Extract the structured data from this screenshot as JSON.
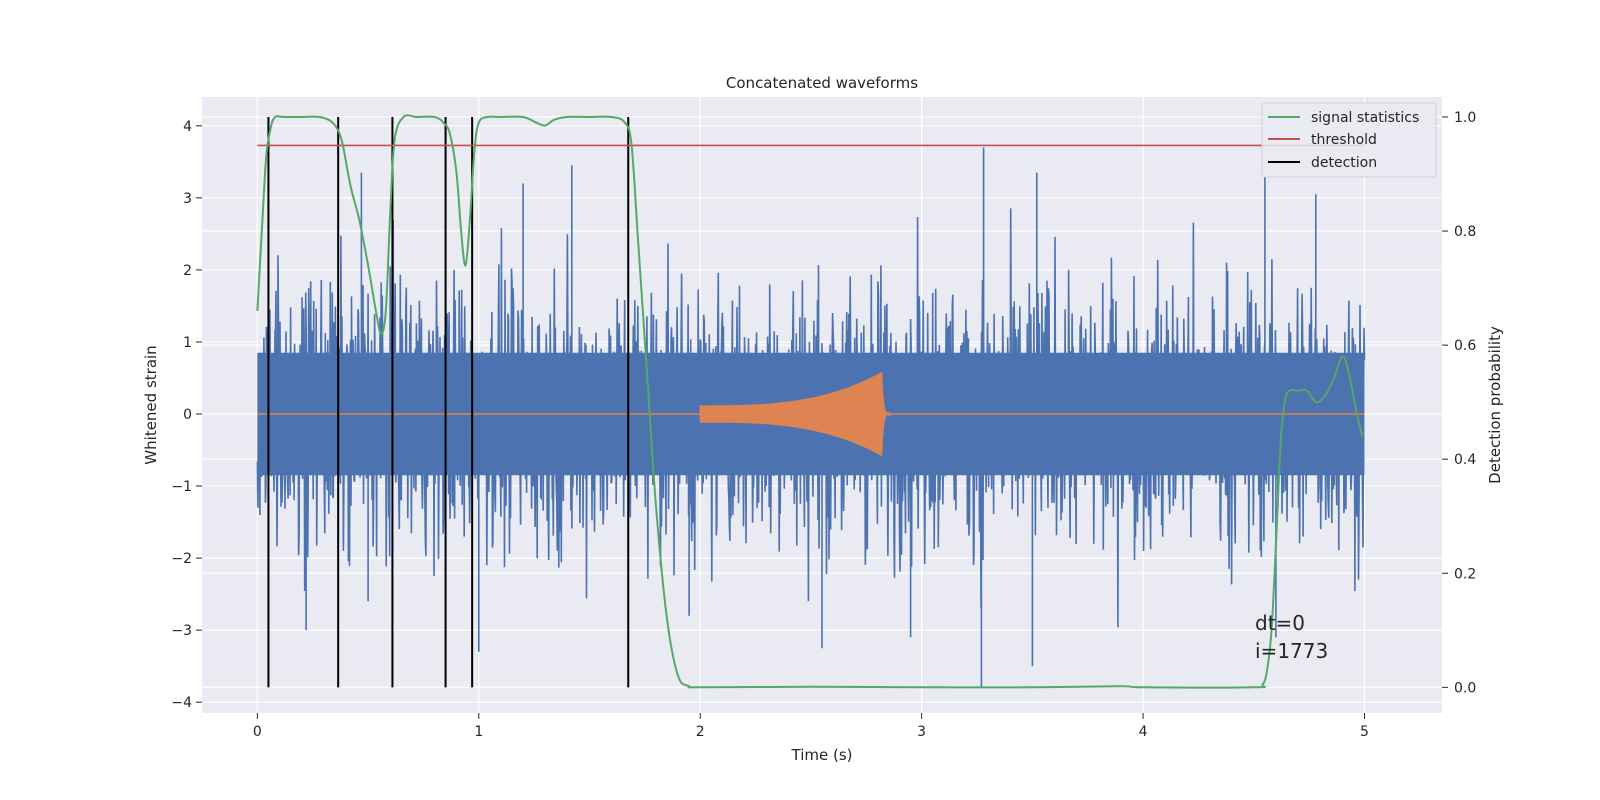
{
  "chart_data": {
    "type": "line",
    "title": "Concatenated waveforms",
    "xlabel": "Time (s)",
    "ylabel_left": "Whitened strain",
    "ylabel_right": "Detection probability",
    "xlim": [
      -0.25,
      5.35
    ],
    "ylim_left": [
      -4.15,
      4.4
    ],
    "ylim_right": [
      -0.045,
      1.035
    ],
    "x_ticks": [
      0,
      1,
      2,
      3,
      4,
      5
    ],
    "y_ticks_left": [
      4,
      3,
      2,
      1,
      0,
      -1,
      -2,
      -3,
      -4
    ],
    "y_ticks_right": [
      1.0,
      0.8,
      0.6,
      0.4,
      0.2,
      0.0
    ],
    "x_tick_labels": [
      "0",
      "1",
      "2",
      "3",
      "4",
      "5"
    ],
    "y_tick_labels_left": [
      "4",
      "3",
      "2",
      "1",
      "0",
      "−1",
      "−2",
      "−3",
      "−4"
    ],
    "y_tick_labels_right": [
      "1.0",
      "0.8",
      "0.6",
      "0.4",
      "0.2",
      "0.0"
    ],
    "grid": true,
    "legend_position": "upper right",
    "colors": {
      "noise": "#4c72b0",
      "injection": "#dd8452",
      "signal_statistics": "#55a868",
      "threshold": "#c44e52",
      "detection": "#000000",
      "plot_bg": "#eaeaf2",
      "grid": "#ffffff"
    },
    "series": [
      {
        "name": "signal statistics",
        "axis": "right",
        "x": [
          0.0,
          0.02,
          0.04,
          0.06,
          0.08,
          0.12,
          0.2,
          0.28,
          0.34,
          0.38,
          0.42,
          0.46,
          0.5,
          0.54,
          0.56,
          0.58,
          0.6,
          0.62,
          0.66,
          0.72,
          0.8,
          0.84,
          0.87,
          0.9,
          0.92,
          0.94,
          0.96,
          0.98,
          1.0,
          1.04,
          1.1,
          1.2,
          1.26,
          1.3,
          1.34,
          1.4,
          1.5,
          1.6,
          1.66,
          1.69,
          1.72,
          1.76,
          1.8,
          1.85,
          1.9,
          1.95,
          2.0,
          2.5,
          3.0,
          3.5,
          3.9,
          4.0,
          4.5,
          4.54,
          4.56,
          4.58,
          4.6,
          4.62,
          4.64,
          4.66,
          4.7,
          4.74,
          4.78,
          4.82,
          4.86,
          4.9,
          4.93,
          4.96,
          4.99
        ],
        "values": [
          0.66,
          0.8,
          0.93,
          0.98,
          1.0,
          1.0,
          1.0,
          1.0,
          0.99,
          0.96,
          0.88,
          0.82,
          0.74,
          0.65,
          0.62,
          0.66,
          0.83,
          0.96,
          1.0,
          1.0,
          1.0,
          0.99,
          0.97,
          0.9,
          0.8,
          0.74,
          0.82,
          0.94,
          0.99,
          1.0,
          1.0,
          1.0,
          0.99,
          0.985,
          0.995,
          1.0,
          1.0,
          1.0,
          0.99,
          0.95,
          0.78,
          0.55,
          0.32,
          0.12,
          0.02,
          0.002,
          0.0,
          0.001,
          0.0,
          0.0,
          0.002,
          0.0,
          0.0,
          0.005,
          0.03,
          0.1,
          0.25,
          0.42,
          0.5,
          0.52,
          0.52,
          0.52,
          0.5,
          0.51,
          0.54,
          0.58,
          0.55,
          0.49,
          0.44
        ]
      },
      {
        "name": "threshold",
        "axis": "right",
        "x": [
          0.0,
          5.0
        ],
        "values": [
          0.95,
          0.95
        ]
      },
      {
        "name": "detection",
        "axis": "right",
        "x_positions": [
          0.05,
          0.365,
          0.61,
          0.85,
          0.97,
          1.675
        ],
        "ymin": 0.0,
        "ymax": 1.0
      },
      {
        "axis": "left",
        "x_range": [
          0.0,
          5.0
        ],
        "core_amplitude": 0.85,
        "spikes": [
          {
            "x": 0.47,
            "y": 3.35
          },
          {
            "x": 0.5,
            "y": -2.6
          },
          {
            "x": 1.0,
            "y": -3.3
          },
          {
            "x": 1.2,
            "y": 3.2
          },
          {
            "x": 1.42,
            "y": 3.45
          },
          {
            "x": 1.95,
            "y": -2.8
          },
          {
            "x": 3.28,
            "y": 3.7
          },
          {
            "x": 3.27,
            "y": -3.8
          },
          {
            "x": 3.5,
            "y": -3.5
          },
          {
            "x": 3.52,
            "y": 3.35
          },
          {
            "x": 2.55,
            "y": -3.25
          },
          {
            "x": 4.55,
            "y": 3.3
          },
          {
            "x": 4.6,
            "y": -3.1
          },
          {
            "x": 4.78,
            "y": 3.05
          },
          {
            "x": 0.22,
            "y": -3.0
          },
          {
            "x": 2.95,
            "y": -3.1
          }
        ]
      },
      {
        "axis": "left",
        "x_range": [
          0.0,
          5.0
        ],
        "active_range": [
          2.0,
          2.82
        ],
        "peak_amplitude": 0.58,
        "end_amplitude": 0.12,
        "decay_end": 2.87
      }
    ],
    "legend": [
      {
        "label": "signal statistics",
        "color": "#55a868"
      },
      {
        "label": "threshold",
        "color": "#c44e52"
      },
      {
        "label": "detection",
        "color": "#000000"
      }
    ],
    "annotations": [
      "dt=0",
      "i=1773"
    ]
  }
}
